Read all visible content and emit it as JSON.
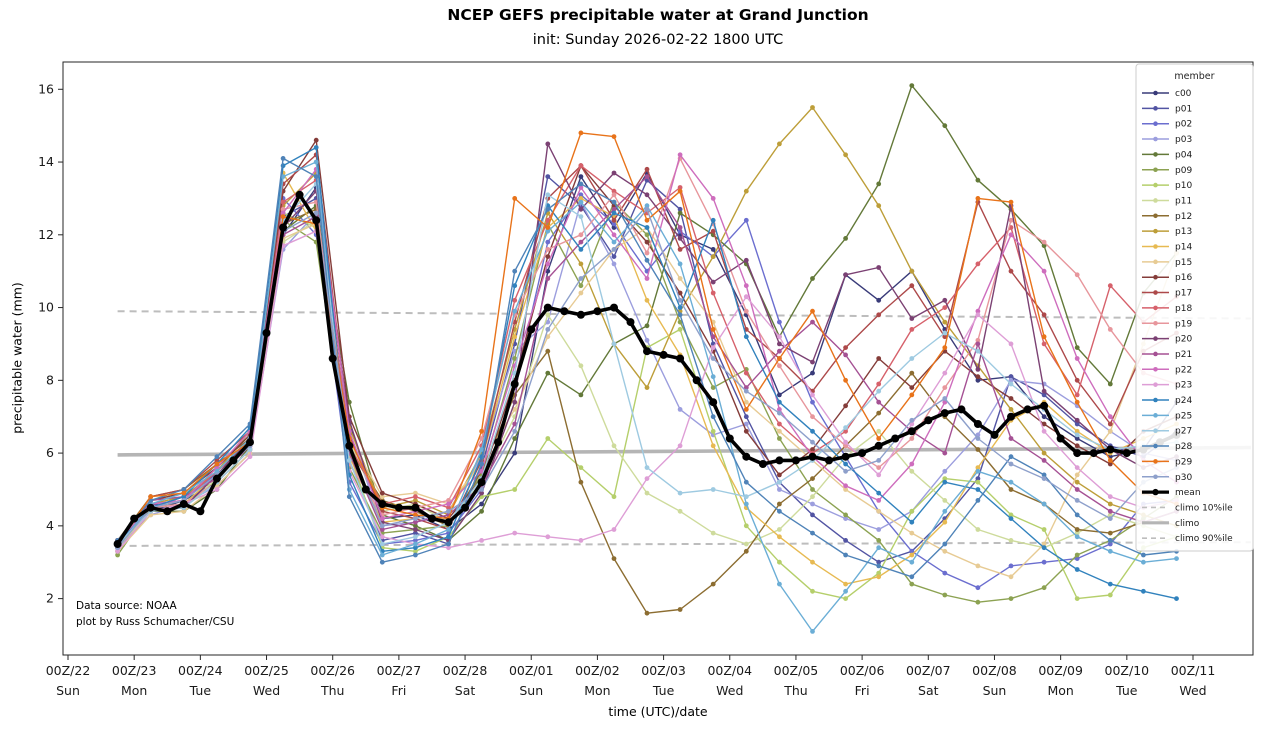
{
  "title": "NCEP GEFS precipitable water at Grand Junction",
  "subtitle": "init: Sunday 2026-02-22 1800 UTC",
  "annotation": {
    "line1": "Data source: NOAA",
    "line2": "plot by Russ Schumacher/CSU"
  },
  "chart_data": {
    "type": "line",
    "title": "NCEP GEFS precipitable water at Grand Junction",
    "subtitle": "init: Sunday 2026-02-22 1800 UTC",
    "xlabel": "time (UTC)/date",
    "ylabel": "precipitable water (mm)",
    "ylim": [
      0.45,
      16.75
    ],
    "yticks": [
      2,
      4,
      6,
      8,
      10,
      12,
      14,
      16
    ],
    "grid": false,
    "legend_title": "member",
    "legend_position": "upper right",
    "x_start_hour": 18,
    "member_step_hours": 12,
    "mean_step_hours": 6,
    "xticks": [
      {
        "utc": "00Z/22",
        "day": "Sun",
        "hour": 0
      },
      {
        "utc": "00Z/23",
        "day": "Mon",
        "hour": 24
      },
      {
        "utc": "00Z/24",
        "day": "Tue",
        "hour": 48
      },
      {
        "utc": "00Z/25",
        "day": "Wed",
        "hour": 72
      },
      {
        "utc": "00Z/26",
        "day": "Thu",
        "hour": 96
      },
      {
        "utc": "00Z/27",
        "day": "Fri",
        "hour": 120
      },
      {
        "utc": "00Z/28",
        "day": "Sat",
        "hour": 144
      },
      {
        "utc": "00Z/01",
        "day": "Sun",
        "hour": 168
      },
      {
        "utc": "00Z/02",
        "day": "Mon",
        "hour": 192
      },
      {
        "utc": "00Z/03",
        "day": "Tue",
        "hour": 216
      },
      {
        "utc": "00Z/04",
        "day": "Wed",
        "hour": 240
      },
      {
        "utc": "00Z/05",
        "day": "Thu",
        "hour": 264
      },
      {
        "utc": "00Z/06",
        "day": "Fri",
        "hour": 288
      },
      {
        "utc": "00Z/07",
        "day": "Sat",
        "hour": 312
      },
      {
        "utc": "00Z/08",
        "day": "Sun",
        "hour": 336
      },
      {
        "utc": "00Z/09",
        "day": "Mon",
        "hour": 360
      },
      {
        "utc": "00Z/10",
        "day": "Tue",
        "hour": 384
      },
      {
        "utc": "00Z/11",
        "day": "Wed",
        "hour": 408
      }
    ],
    "members": [
      {
        "name": "c00",
        "color": "#393b79",
        "values": [
          3.4,
          4.4,
          4.7,
          5.2,
          6.1,
          12.0,
          13.3,
          6.8,
          4.2,
          4.3,
          3.9,
          4.6,
          6.0,
          11.0,
          13.6,
          12.2,
          13.7,
          12.0,
          11.6,
          9.8,
          7.6,
          8.2,
          10.9,
          10.2,
          11.0,
          9.4,
          8.0,
          8.1,
          7.0,
          6.4,
          5.9,
          6.1,
          7.4
        ]
      },
      {
        "name": "p01",
        "color": "#5254a3",
        "values": [
          3.5,
          4.6,
          4.5,
          5.5,
          6.4,
          12.5,
          13.0,
          5.8,
          3.6,
          3.8,
          3.5,
          5.6,
          9.0,
          13.6,
          12.8,
          11.4,
          13.5,
          12.7,
          9.0,
          7.0,
          5.2,
          4.3,
          3.6,
          3.0,
          3.3,
          4.2,
          5.3,
          8.1,
          7.6,
          6.8,
          6.2,
          5.9,
          6.6
        ]
      },
      {
        "name": "p02",
        "color": "#6b6ecf",
        "values": [
          3.6,
          4.5,
          4.8,
          5.4,
          6.2,
          13.0,
          12.0,
          5.2,
          3.5,
          3.6,
          3.8,
          5.0,
          7.8,
          11.8,
          13.1,
          12.3,
          11.0,
          12.1,
          11.4,
          12.4,
          9.6,
          7.4,
          5.9,
          4.4,
          3.3,
          2.7,
          2.3,
          2.9,
          3.0,
          3.1,
          3.5,
          4.6,
          4.7
        ]
      },
      {
        "name": "p03",
        "color": "#9c9ede",
        "values": [
          3.4,
          4.3,
          4.6,
          5.1,
          6.0,
          11.6,
          12.6,
          6.6,
          4.0,
          4.1,
          4.4,
          5.9,
          8.8,
          9.6,
          12.9,
          11.2,
          9.1,
          7.2,
          6.5,
          6.8,
          5.0,
          4.6,
          4.2,
          3.9,
          4.4,
          5.5,
          6.5,
          8.0,
          7.9,
          7.3,
          6.6,
          6.0,
          5.8
        ]
      },
      {
        "name": "p04",
        "color": "#637939",
        "values": [
          3.3,
          4.4,
          4.4,
          5.0,
          6.2,
          12.1,
          12.8,
          7.4,
          4.3,
          4.0,
          3.6,
          4.4,
          6.4,
          8.2,
          7.6,
          9.0,
          9.5,
          12.6,
          12.0,
          11.2,
          9.2,
          10.8,
          11.9,
          13.4,
          16.1,
          15.0,
          13.5,
          12.7,
          11.7,
          8.9,
          7.9,
          10.4,
          11.5
        ]
      },
      {
        "name": "p09",
        "color": "#8ca252",
        "values": [
          3.2,
          4.5,
          4.7,
          5.6,
          6.5,
          12.4,
          11.8,
          5.6,
          3.8,
          3.9,
          4.0,
          5.4,
          8.6,
          12.3,
          10.6,
          12.9,
          12.0,
          9.6,
          7.8,
          8.3,
          6.4,
          5.0,
          4.3,
          3.6,
          2.4,
          2.1,
          1.9,
          2.0,
          2.3,
          3.2,
          3.6,
          4.2,
          4.8
        ]
      },
      {
        "name": "p10",
        "color": "#b5cf6b",
        "values": [
          3.5,
          4.7,
          4.9,
          5.2,
          6.1,
          12.6,
          12.2,
          6.0,
          3.4,
          3.3,
          3.7,
          4.8,
          5.0,
          6.4,
          5.6,
          4.8,
          8.9,
          9.4,
          6.6,
          4.0,
          3.0,
          2.2,
          2.0,
          2.7,
          4.4,
          5.3,
          5.2,
          4.3,
          3.9,
          2.0,
          2.1,
          3.4,
          3.7
        ]
      },
      {
        "name": "p11",
        "color": "#cedb9c",
        "values": [
          3.4,
          4.4,
          4.5,
          5.3,
          6.3,
          11.8,
          12.4,
          6.3,
          4.4,
          4.6,
          4.1,
          5.2,
          7.0,
          9.8,
          8.4,
          6.2,
          4.9,
          4.4,
          3.8,
          3.5,
          3.9,
          4.8,
          5.9,
          6.6,
          5.5,
          4.7,
          3.9,
          3.6,
          3.4,
          3.8,
          4.3,
          4.0,
          3.7
        ]
      },
      {
        "name": "p12",
        "color": "#8c6d31",
        "values": [
          3.6,
          4.8,
          5.0,
          5.7,
          6.4,
          12.3,
          12.7,
          6.1,
          4.7,
          4.4,
          4.0,
          5.5,
          7.6,
          8.8,
          5.2,
          3.1,
          1.6,
          1.7,
          2.4,
          3.3,
          4.6,
          5.3,
          6.2,
          7.1,
          8.2,
          7.0,
          6.1,
          5.0,
          4.6,
          3.9,
          3.8,
          4.1,
          4.4
        ]
      },
      {
        "name": "p13",
        "color": "#bd9e39",
        "values": [
          3.5,
          4.6,
          4.8,
          5.5,
          6.6,
          12.8,
          13.7,
          6.7,
          4.5,
          4.7,
          4.3,
          6.0,
          9.4,
          12.6,
          11.2,
          9.0,
          7.8,
          9.9,
          11.4,
          13.2,
          14.5,
          15.5,
          14.2,
          12.8,
          11.0,
          9.6,
          8.4,
          7.2,
          6.0,
          5.2,
          4.6,
          4.3,
          4.0
        ]
      },
      {
        "name": "p14",
        "color": "#e7ba52",
        "values": [
          3.4,
          4.5,
          4.6,
          5.4,
          6.2,
          13.7,
          12.1,
          5.9,
          4.1,
          4.2,
          4.4,
          5.8,
          9.2,
          12.2,
          13.0,
          12.5,
          10.2,
          8.7,
          6.2,
          4.5,
          3.7,
          3.0,
          2.4,
          2.6,
          3.2,
          4.1,
          5.6,
          6.9,
          7.4,
          6.6,
          6.0,
          6.4,
          6.8
        ]
      },
      {
        "name": "p15",
        "color": "#e7cb94",
        "values": [
          3.3,
          4.3,
          4.4,
          5.1,
          6.0,
          11.9,
          12.3,
          6.4,
          4.8,
          4.9,
          4.6,
          5.7,
          7.2,
          9.2,
          10.4,
          11.6,
          12.2,
          10.8,
          9.6,
          7.4,
          6.6,
          5.8,
          5.0,
          4.4,
          3.8,
          3.3,
          2.9,
          2.6,
          3.5,
          5.4,
          6.6,
          9.0,
          11.5
        ]
      },
      {
        "name": "p16",
        "color": "#843c39",
        "values": [
          3.6,
          4.7,
          4.9,
          5.6,
          6.5,
          13.2,
          14.6,
          7.0,
          4.9,
          4.6,
          4.2,
          5.3,
          8.0,
          11.4,
          13.9,
          12.8,
          11.8,
          10.4,
          8.8,
          6.6,
          5.4,
          6.1,
          7.3,
          8.6,
          7.8,
          8.8,
          8.1,
          7.5,
          6.8,
          6.2,
          5.7,
          6.6,
          7.0
        ]
      },
      {
        "name": "p17",
        "color": "#ad494a",
        "values": [
          3.5,
          4.8,
          5.0,
          5.8,
          6.6,
          13.4,
          14.2,
          6.5,
          4.4,
          4.2,
          3.9,
          5.8,
          9.6,
          13.0,
          13.9,
          12.4,
          13.8,
          11.6,
          12.1,
          9.4,
          8.6,
          7.7,
          8.9,
          9.8,
          10.6,
          9.2,
          12.9,
          11.0,
          9.8,
          8.0,
          6.8,
          8.8,
          9.3
        ]
      },
      {
        "name": "p18",
        "color": "#d6616b",
        "values": [
          3.4,
          4.6,
          4.7,
          5.5,
          6.3,
          12.9,
          13.5,
          6.2,
          4.6,
          4.8,
          4.5,
          6.2,
          10.2,
          12.4,
          13.9,
          13.2,
          12.6,
          13.3,
          10.4,
          8.2,
          6.8,
          6.0,
          6.6,
          7.9,
          9.4,
          10.0,
          11.2,
          12.2,
          9.0,
          7.6,
          10.6,
          9.6,
          10.3
        ]
      },
      {
        "name": "p19",
        "color": "#e7969c",
        "values": [
          3.5,
          4.5,
          4.6,
          5.2,
          6.1,
          12.7,
          12.9,
          5.7,
          4.3,
          4.5,
          4.7,
          6.4,
          9.8,
          11.6,
          12.0,
          13.1,
          11.5,
          14.1,
          12.3,
          9.9,
          8.4,
          7.0,
          6.2,
          5.6,
          6.4,
          7.8,
          9.1,
          12.4,
          11.8,
          10.9,
          9.4,
          8.2,
          7.9
        ]
      },
      {
        "name": "p20",
        "color": "#7b4173",
        "values": [
          3.6,
          4.4,
          4.5,
          5.4,
          6.4,
          12.2,
          13.2,
          6.9,
          4.1,
          3.9,
          3.6,
          4.9,
          7.4,
          14.5,
          12.7,
          13.7,
          13.1,
          11.9,
          10.7,
          11.3,
          9.0,
          8.5,
          10.9,
          11.1,
          9.7,
          10.2,
          8.3,
          12.8,
          7.7,
          6.9,
          6.1,
          5.6,
          5.9
        ]
      },
      {
        "name": "p21",
        "color": "#a55194",
        "values": [
          3.4,
          4.7,
          4.8,
          5.3,
          6.2,
          12.0,
          12.5,
          6.0,
          3.9,
          4.1,
          4.3,
          5.1,
          6.8,
          10.8,
          11.8,
          12.7,
          13.6,
          12.2,
          9.2,
          7.8,
          8.8,
          9.6,
          8.7,
          7.4,
          6.6,
          6.0,
          9.0,
          6.4,
          5.8,
          5.0,
          4.4,
          4.1,
          4.4
        ]
      },
      {
        "name": "p22",
        "color": "#ce6dbd",
        "values": [
          3.5,
          4.6,
          4.7,
          5.6,
          6.6,
          12.6,
          13.8,
          6.6,
          4.2,
          4.4,
          4.6,
          5.5,
          8.4,
          11.2,
          13.3,
          12.0,
          10.8,
          14.2,
          13.0,
          10.6,
          7.2,
          5.9,
          5.1,
          4.7,
          5.7,
          7.4,
          9.9,
          12.0,
          11.0,
          8.6,
          7.0,
          5.8,
          5.2
        ]
      },
      {
        "name": "p23",
        "color": "#de9ed6",
        "values": [
          3.3,
          4.4,
          4.6,
          5.0,
          5.9,
          11.7,
          12.1,
          5.5,
          3.7,
          3.5,
          3.4,
          3.6,
          3.8,
          3.7,
          3.6,
          3.9,
          5.3,
          6.2,
          8.9,
          10.3,
          9.2,
          7.6,
          6.3,
          5.4,
          6.8,
          8.2,
          9.8,
          9.0,
          6.6,
          5.6,
          4.8,
          4.5,
          4.7
        ]
      },
      {
        "name": "p24",
        "color": "#3182bd",
        "values": [
          3.5,
          4.5,
          4.8,
          5.7,
          6.7,
          13.9,
          14.4,
          5.4,
          3.3,
          3.4,
          3.7,
          5.9,
          10.6,
          12.8,
          11.6,
          12.6,
          12.2,
          10.0,
          12.4,
          9.2,
          7.4,
          6.6,
          5.7,
          4.9,
          4.1,
          5.2,
          5.0,
          4.2,
          3.4,
          2.8,
          2.4,
          2.2,
          2.0
        ]
      },
      {
        "name": "p25",
        "color": "#6baed6",
        "values": [
          3.4,
          4.6,
          4.9,
          5.5,
          6.4,
          13.6,
          14.0,
          5.0,
          3.2,
          3.5,
          3.9,
          6.1,
          9.9,
          12.1,
          12.9,
          11.8,
          12.8,
          11.2,
          8.1,
          4.6,
          2.4,
          1.1,
          2.2,
          3.4,
          3.0,
          4.4,
          5.5,
          5.2,
          4.6,
          3.7,
          3.3,
          3.0,
          3.1
        ]
      },
      {
        "name": "p27",
        "color": "#9ecae1",
        "values": [
          3.5,
          4.4,
          4.5,
          5.2,
          6.1,
          12.4,
          13.4,
          5.8,
          3.5,
          3.7,
          4.1,
          5.3,
          8.2,
          13.1,
          12.5,
          9.0,
          5.6,
          4.9,
          5.0,
          4.8,
          5.2,
          5.8,
          6.7,
          7.7,
          8.6,
          9.3,
          8.8,
          7.9,
          7.2,
          6.5,
          6.1,
          6.2,
          6.3
        ]
      },
      {
        "name": "p28",
        "color": "#4f83b8",
        "values": [
          3.6,
          4.7,
          5.0,
          5.9,
          6.8,
          14.1,
          13.6,
          4.8,
          3.0,
          3.2,
          3.5,
          5.7,
          11.0,
          12.7,
          13.4,
          12.9,
          11.3,
          9.8,
          7.0,
          5.2,
          4.4,
          3.8,
          3.2,
          2.9,
          2.6,
          3.5,
          4.7,
          5.9,
          5.4,
          4.3,
          3.6,
          3.2,
          3.3
        ]
      },
      {
        "name": "p29",
        "color": "#e8731a",
        "values": [
          3.5,
          4.8,
          4.9,
          5.7,
          6.3,
          12.5,
          12.3,
          6.4,
          4.5,
          4.3,
          4.2,
          6.6,
          13.0,
          12.2,
          14.8,
          14.7,
          12.4,
          13.2,
          9.4,
          7.2,
          8.6,
          9.9,
          8.0,
          6.4,
          7.6,
          8.9,
          13.0,
          12.9,
          9.2,
          7.4,
          5.8,
          4.9,
          4.6
        ]
      },
      {
        "name": "p30",
        "color": "#8ea0cb",
        "values": [
          3.4,
          4.5,
          4.7,
          5.4,
          6.2,
          12.1,
          12.6,
          6.1,
          4.0,
          4.2,
          4.4,
          5.0,
          6.6,
          9.4,
          10.8,
          11.6,
          12.7,
          10.2,
          8.6,
          7.7,
          7.1,
          6.3,
          5.5,
          5.8,
          6.9,
          7.5,
          6.4,
          5.7,
          5.3,
          4.7,
          4.2,
          5.2,
          5.6
        ]
      }
    ],
    "mean": {
      "name": "mean",
      "color": "#000000",
      "values": [
        3.5,
        4.2,
        4.5,
        4.4,
        4.6,
        4.4,
        5.3,
        5.8,
        6.3,
        9.3,
        12.2,
        13.1,
        12.4,
        8.6,
        6.2,
        5.0,
        4.6,
        4.5,
        4.5,
        4.2,
        4.1,
        4.5,
        5.2,
        6.3,
        7.9,
        9.4,
        10.0,
        9.9,
        9.8,
        9.9,
        10.0,
        9.6,
        8.8,
        8.7,
        8.6,
        8.0,
        7.4,
        6.4,
        5.9,
        5.7,
        5.8,
        5.8,
        5.9,
        5.8,
        5.9,
        6.0,
        6.2,
        6.4,
        6.6,
        6.9,
        7.1,
        7.2,
        6.8,
        6.5,
        7.0,
        7.2,
        7.3,
        6.4,
        6.0,
        6.0,
        6.1,
        6.0,
        6.1,
        6.3,
        6.5
      ]
    },
    "climo_10pct": {
      "name": "climo 10%ile",
      "color": "#bdbdbd",
      "start": 3.45,
      "end": 3.55
    },
    "climo": {
      "name": "climo",
      "color": "#b5b5b5",
      "start": 5.95,
      "end": 6.15
    },
    "climo_90pct": {
      "name": "climo 90%ile",
      "color": "#bdbdbd",
      "start": 9.9,
      "end": 9.7
    }
  }
}
